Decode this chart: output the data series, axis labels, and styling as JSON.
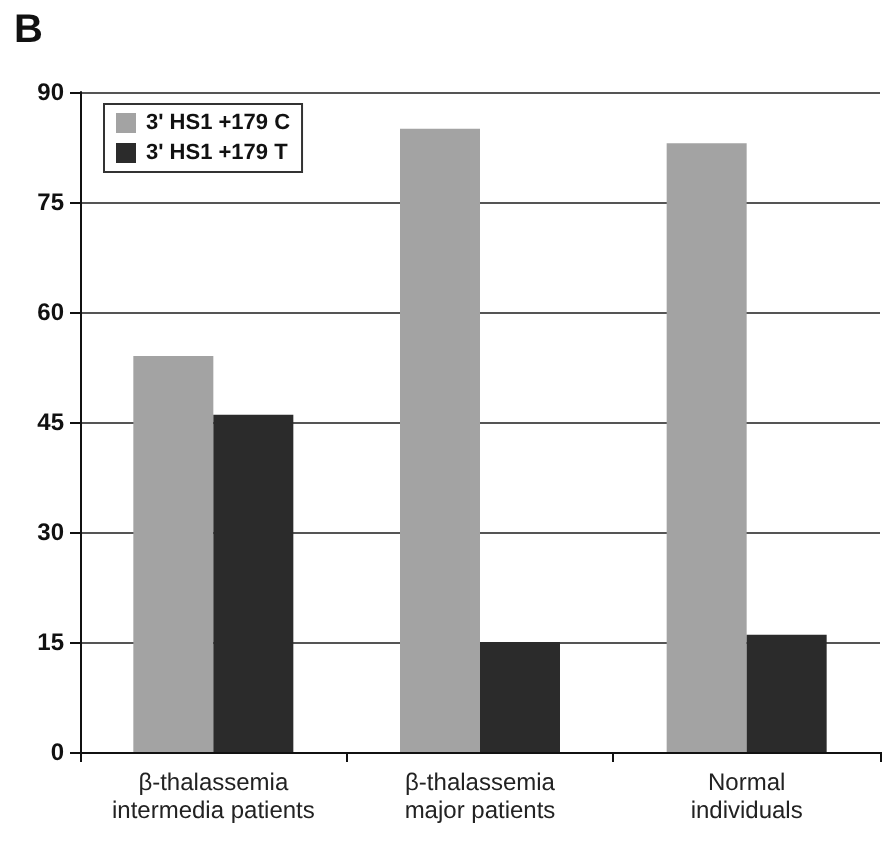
{
  "chart_data": {
    "type": "bar",
    "title": "B",
    "categories": [
      "β-thalassemia\nintermedia patients",
      "β-thalassemia\nmajor patients",
      "Normal\nindividuals"
    ],
    "series": [
      {
        "name": "3' HS1 +179 C",
        "color": "#a3a3a3",
        "values": [
          54,
          85,
          83
        ]
      },
      {
        "name": "3' HS1 +179 T",
        "color": "#2b2b2b",
        "values": [
          46,
          15,
          16
        ]
      }
    ],
    "ylim": [
      0,
      90
    ],
    "yticks": [
      0,
      15,
      30,
      45,
      60,
      75,
      90
    ],
    "grid": "y",
    "legend": "top left"
  }
}
